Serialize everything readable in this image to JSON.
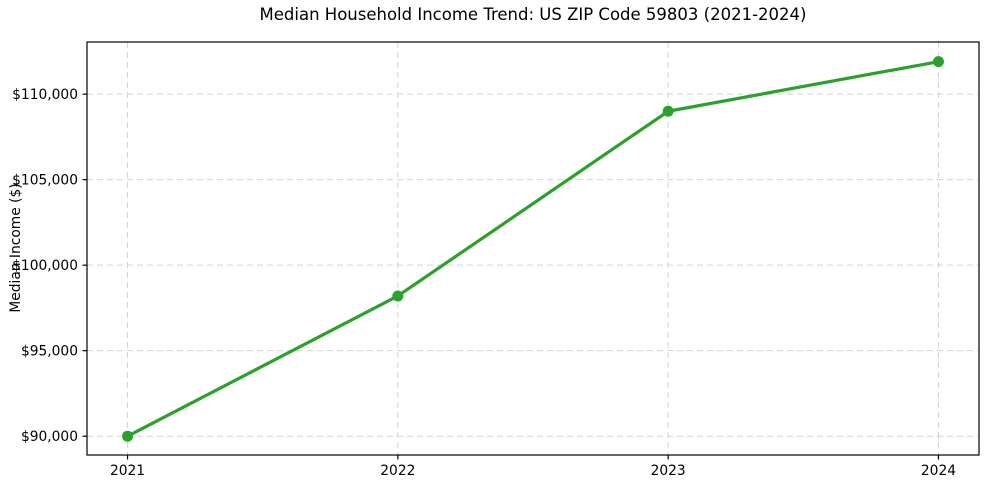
{
  "chart_data": {
    "type": "line",
    "title": "Median Household Income Trend: US ZIP Code 59803 (2021-2024)",
    "xlabel": "",
    "ylabel": "Median Income ($)",
    "x": [
      2021,
      2022,
      2023,
      2024
    ],
    "y": [
      90000,
      98200,
      109000,
      111900
    ],
    "xticks": {
      "values": [
        2021,
        2022,
        2023,
        2024
      ],
      "labels": [
        "2021",
        "2022",
        "2023",
        "2024"
      ]
    },
    "yticks": {
      "values": [
        90000,
        95000,
        100000,
        105000,
        110000
      ],
      "labels": [
        "$90,000",
        "$95,000",
        "$100,000",
        "$105,000",
        "$110,000"
      ]
    },
    "xlim": [
      2020.85,
      2024.15
    ],
    "ylim": [
      88900,
      113050
    ],
    "grid": true,
    "legend": "none",
    "style": {
      "line_color": "#2ca02c",
      "marker": "circle",
      "marker_radius": 5.5,
      "line_width": 3.2,
      "grid_color": "#d3d3d3",
      "grid_dash": "6,4",
      "spine_color": "#000000",
      "tick_color": "#000000",
      "text_color": "#000000",
      "background": "#ffffff"
    }
  }
}
